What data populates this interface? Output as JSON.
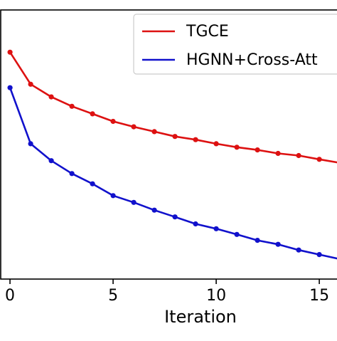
{
  "chart_data": {
    "type": "line",
    "title": "",
    "xlabel": "Iteration",
    "ylabel": "",
    "x": [
      0,
      1,
      2,
      3,
      4,
      5,
      6,
      7,
      8,
      9,
      10,
      11,
      12,
      13,
      14,
      15,
      16
    ],
    "xticks": [
      "0",
      "5",
      "10",
      "15"
    ],
    "xlim": [
      -0.45,
      16.1
    ],
    "grid": false,
    "legend_position": "top-right",
    "series": [
      {
        "name": "TGCE",
        "color": "#dd1111",
        "values": [
          0.843,
          0.724,
          0.677,
          0.642,
          0.614,
          0.586,
          0.566,
          0.548,
          0.53,
          0.518,
          0.503,
          0.49,
          0.48,
          0.467,
          0.459,
          0.445,
          0.432
        ]
      },
      {
        "name": "HGNN+Cross-Att",
        "color": "#1111cc",
        "values": [
          0.711,
          0.503,
          0.44,
          0.392,
          0.354,
          0.31,
          0.285,
          0.256,
          0.231,
          0.205,
          0.187,
          0.166,
          0.144,
          0.129,
          0.108,
          0.091,
          0.074
        ]
      }
    ],
    "ylim": [
      0,
      1
    ]
  }
}
